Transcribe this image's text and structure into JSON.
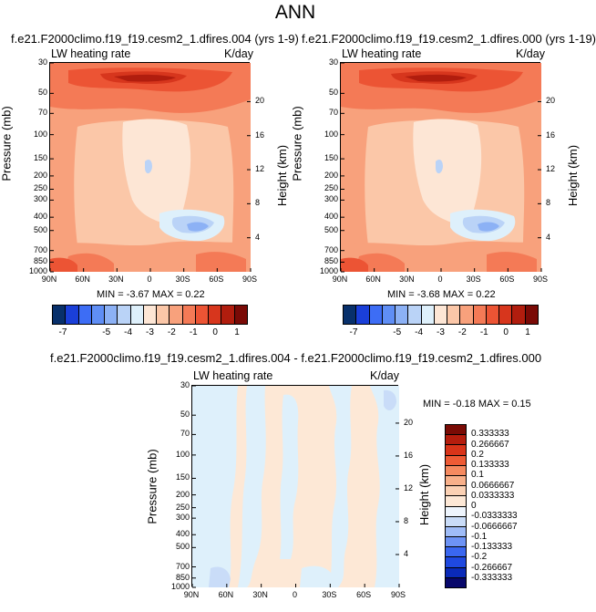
{
  "main_title": "ANN",
  "colors": {
    "red_scale": [
      "#08306b",
      "#1a3fd8",
      "#3d6df5",
      "#5f8ef5",
      "#8cb1f5",
      "#bad3f7",
      "#def0fb",
      "#fde6d5",
      "#fbc7a8",
      "#f8a17c",
      "#f47a56",
      "#ec5434",
      "#d7361d",
      "#b11d0e",
      "#7a0a06"
    ],
    "diff_scale": [
      "#08086b",
      "#0a2ab8",
      "#1f49e0",
      "#3a67f0",
      "#6d93f5",
      "#9fbcf7",
      "#c9dcf8",
      "#eef5fd",
      "#fde8d6",
      "#fbd1b4",
      "#f8b08a",
      "#f58a60",
      "#ee5b35",
      "#d93419",
      "#b51d0d",
      "#7a0b05"
    ]
  },
  "panels": {
    "left": {
      "title": "f.e21.F2000climo.f19_f19.cesm2_1.dfires.004 (yrs 1-9)",
      "var_label": "LW heating rate",
      "units": "K/day",
      "ylabel": "Pressure (mb)",
      "ylabel_right": "Height (km)",
      "stats": "MIN =  -3.67   MAX =   0.22"
    },
    "right": {
      "title": "f.e21.F2000climo.f19_f19.cesm2_1.dfires.000 (yrs 1-19)",
      "var_label": "LW heating rate",
      "units": "K/day",
      "ylabel": "Pressure (mb)",
      "ylabel_right": "Height (km)",
      "stats": "MIN =  -3.68   MAX =   0.22"
    },
    "diff": {
      "title": "f.e21.F2000climo.f19_f19.cesm2_1.dfires.004 - f.e21.F2000climo.f19_f19.cesm2_1.dfires.000",
      "var_label": "LW heating rate",
      "units": "K/day",
      "ylabel": "Pressure (mb)",
      "ylabel_right": "Height (km)",
      "stats": "MIN =  -0.18   MAX =   0.15"
    }
  },
  "chart_data": [
    {
      "type": "heatmap",
      "title": "f.e21.F2000climo.f19_f19.cesm2_1.dfires.004 (yrs 1-9)",
      "xlabel": "",
      "ylabel": "Pressure (mb)",
      "x_ticks": [
        "90N",
        "60N",
        "30N",
        "0",
        "30S",
        "60S",
        "90S"
      ],
      "y_ticks": [
        30,
        50,
        70,
        100,
        150,
        200,
        250,
        300,
        400,
        500,
        700,
        850,
        1000
      ],
      "y_right_label": "Height (km)",
      "y_right_ticks": [
        20,
        16,
        12,
        8,
        4
      ],
      "ylim": [
        1000,
        30
      ],
      "y_scale": "log",
      "min": -3.67,
      "max": 0.22,
      "colorbar_labels": [
        "-7",
        "-5",
        "-4",
        "-3",
        "-2",
        "-1",
        "0",
        "1"
      ],
      "colorbar_range": [
        -7.5,
        1.5
      ]
    },
    {
      "type": "heatmap",
      "title": "f.e21.F2000climo.f19_f19.cesm2_1.dfires.000 (yrs 1-19)",
      "xlabel": "",
      "ylabel": "Pressure (mb)",
      "x_ticks": [
        "90N",
        "60N",
        "30N",
        "0",
        "30S",
        "60S",
        "90S"
      ],
      "y_ticks": [
        30,
        50,
        70,
        100,
        150,
        200,
        250,
        300,
        400,
        500,
        700,
        850,
        1000
      ],
      "y_right_label": "Height (km)",
      "y_right_ticks": [
        20,
        16,
        12,
        8,
        4
      ],
      "ylim": [
        1000,
        30
      ],
      "y_scale": "log",
      "min": -3.68,
      "max": 0.22,
      "colorbar_labels": [
        "-7",
        "-5",
        "-4",
        "-3",
        "-2",
        "-1",
        "0",
        "1"
      ],
      "colorbar_range": [
        -7.5,
        1.5
      ]
    },
    {
      "type": "heatmap",
      "title": "f.e21.F2000climo.f19_f19.cesm2_1.dfires.004 - f.e21.F2000climo.f19_f19.cesm2_1.dfires.000",
      "xlabel": "",
      "ylabel": "Pressure (mb)",
      "x_ticks": [
        "90N",
        "60N",
        "30N",
        "0",
        "30S",
        "60S",
        "90S"
      ],
      "y_ticks": [
        30,
        50,
        70,
        100,
        150,
        200,
        250,
        300,
        400,
        500,
        700,
        850,
        1000
      ],
      "y_right_label": "Height (km)",
      "y_right_ticks": [
        20,
        16,
        12,
        8,
        4
      ],
      "ylim": [
        1000,
        30
      ],
      "y_scale": "log",
      "min": -0.18,
      "max": 0.15,
      "colorbar_labels": [
        "0.333333",
        "0.266667",
        "0.2",
        "0.133333",
        "0.1",
        "0.0666667",
        "0.0333333",
        "0",
        "-0.0333333",
        "-0.0666667",
        "-0.1",
        "-0.133333",
        "-0.2",
        "-0.266667",
        "-0.333333"
      ]
    }
  ]
}
